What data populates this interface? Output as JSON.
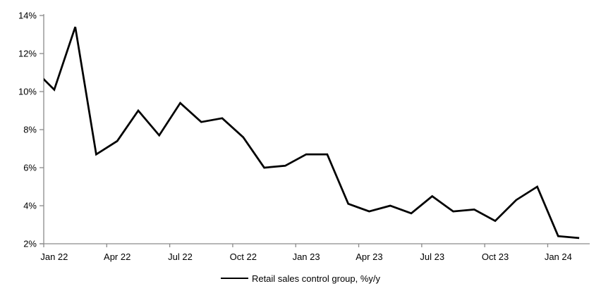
{
  "chart_data": {
    "type": "line",
    "title": "",
    "legend": "Retail sales control group, %y/y",
    "legend_position": "bottom-center",
    "x": [
      "Dec 21",
      "Jan 22",
      "Feb 22",
      "Mar 22",
      "Apr 22",
      "May 22",
      "Jun 22",
      "Jul 22",
      "Aug 22",
      "Sep 22",
      "Oct 22",
      "Nov 22",
      "Dec 22",
      "Jan 23",
      "Feb 23",
      "Mar 23",
      "Apr 23",
      "May 23",
      "Jun 23",
      "Jul 23",
      "Aug 23",
      "Sep 23",
      "Oct 23",
      "Nov 23",
      "Dec 23",
      "Jan 24",
      "Feb 24"
    ],
    "values": [
      11.2,
      10.1,
      13.4,
      6.7,
      7.4,
      9.0,
      7.7,
      9.4,
      8.4,
      8.6,
      7.6,
      6.0,
      6.1,
      6.7,
      6.7,
      4.1,
      3.7,
      4.0,
      3.6,
      4.5,
      3.7,
      3.8,
      3.2,
      4.3,
      5.0,
      2.4,
      2.3
    ],
    "first_point_clipped_at_left_edge": true,
    "x_tick_labels": [
      "Jan 22",
      "Apr 22",
      "Jul 22",
      "Oct 22",
      "Jan 23",
      "Apr 23",
      "Jul 23",
      "Oct 23",
      "Jan 24"
    ],
    "y_tick_labels": [
      "14%",
      "12%",
      "10%",
      "8%",
      "6%",
      "4%",
      "2%"
    ],
    "ylim": [
      2,
      14
    ],
    "y_unit": "%",
    "grid": false,
    "line_color": "#000000",
    "axis_color": "#8a8a8a"
  }
}
